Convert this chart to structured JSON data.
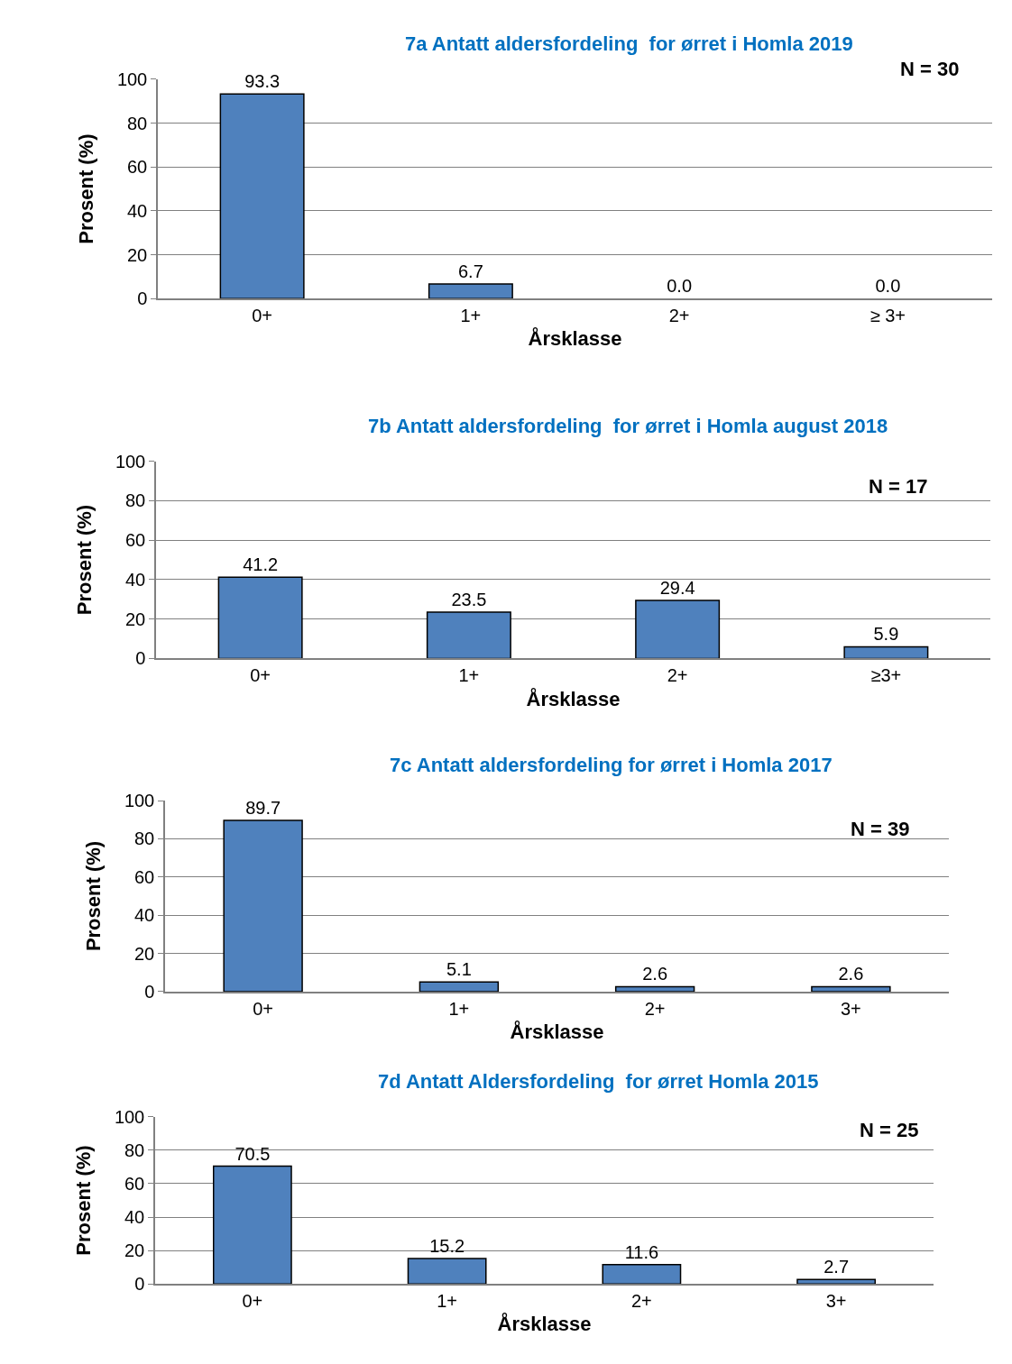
{
  "chart_data": [
    {
      "type": "bar",
      "title": "7a Antatt aldersfordeling  for ørret i Homla 2019",
      "xlabel": "Årsklasse",
      "ylabel": "Prosent (%)",
      "categories": [
        "0+",
        "1+",
        "2+",
        "≥ 3+"
      ],
      "values": [
        93.3,
        6.7,
        0.0,
        0.0
      ],
      "value_labels": [
        "93.3",
        "6.7",
        "0.0",
        "0.0"
      ],
      "color": "#4f81bd",
      "ylim": [
        0,
        100
      ],
      "yticks": [
        0,
        20,
        40,
        60,
        80,
        100
      ],
      "grid": "y",
      "annotations": [
        "N = 30"
      ]
    },
    {
      "type": "bar",
      "title": "7b Antatt aldersfordeling  for ørret i Homla august 2018",
      "xlabel": "Årsklasse",
      "ylabel": "Prosent (%)",
      "categories": [
        "0+",
        "1+",
        "2+",
        "≥3+"
      ],
      "values": [
        41.2,
        23.5,
        29.4,
        5.9
      ],
      "value_labels": [
        "41.2",
        "23.5",
        "29.4",
        "5.9"
      ],
      "color": "#4f81bd",
      "ylim": [
        0,
        100
      ],
      "yticks": [
        0,
        20,
        40,
        60,
        80,
        100
      ],
      "grid": "y",
      "annotations": [
        "N = 17"
      ]
    },
    {
      "type": "bar",
      "title": "7c Antatt aldersfordeling for ørret i Homla 2017",
      "xlabel": "Årsklasse",
      "ylabel": "Prosent (%)",
      "categories": [
        "0+",
        "1+",
        "2+",
        "3+"
      ],
      "values": [
        89.7,
        5.1,
        2.6,
        2.6
      ],
      "value_labels": [
        "89.7",
        "5.1",
        "2.6",
        "2.6"
      ],
      "color": "#4f81bd",
      "ylim": [
        0,
        100
      ],
      "yticks": [
        0,
        20,
        40,
        60,
        80,
        100
      ],
      "grid": "y",
      "annotations": [
        "N = 39"
      ]
    },
    {
      "type": "bar",
      "title": "7d Antatt Aldersfordeling  for ørret Homla 2015",
      "xlabel": "Årsklasse",
      "ylabel": "Prosent (%)",
      "categories": [
        "0+",
        "1+",
        "2+",
        "3+"
      ],
      "values": [
        70.5,
        15.2,
        11.6,
        2.7
      ],
      "value_labels": [
        "70.5",
        "15.2",
        "11.6",
        "2.7"
      ],
      "color": "#4f81bd",
      "ylim": [
        0,
        100
      ],
      "yticks": [
        0,
        20,
        40,
        60,
        80,
        100
      ],
      "grid": "y",
      "annotations": [
        "N = 25"
      ]
    }
  ]
}
